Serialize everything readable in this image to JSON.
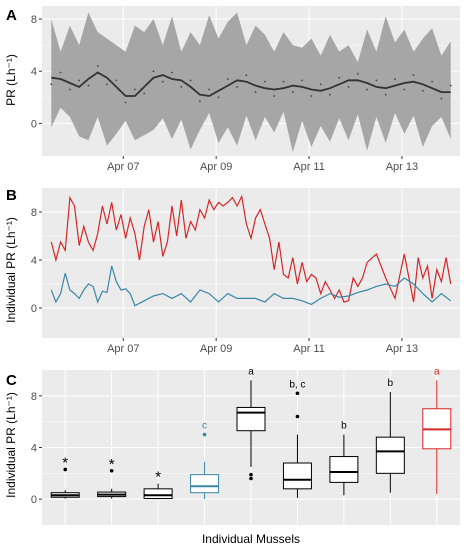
{
  "panels": [
    {
      "letter": "A",
      "ylabel": "PR (Lh⁻¹)"
    },
    {
      "letter": "B",
      "ylabel": "Individual PR (Lh⁻¹)"
    },
    {
      "letter": "C",
      "ylabel": "Individual PR (Lh⁻¹)",
      "xlabel": "Individual Mussels"
    }
  ],
  "colors": {
    "panel_bg": "#ebebeb",
    "grid": "#ffffff",
    "ribbon": "#a6a6a6",
    "mean_line": "#333333",
    "red_series": "#d62728",
    "blue_series": "#3a87a8",
    "box_black": "#000000"
  },
  "chart_data": [
    {
      "panel": "A",
      "type": "area",
      "x_tick_labels": [
        "Apr 07",
        "Apr 09",
        "Apr 11",
        "Apr 13"
      ],
      "x_ticks": [
        1.75,
        3.75,
        5.75,
        7.75
      ],
      "xlim": [
        0,
        9
      ],
      "ylim": [
        -2.5,
        9
      ],
      "y_ticks": [
        0,
        4,
        8
      ],
      "grid": true,
      "x": [
        0.2,
        0.4,
        0.6,
        0.8,
        1.0,
        1.2,
        1.4,
        1.6,
        1.8,
        2.0,
        2.2,
        2.4,
        2.6,
        2.8,
        3.0,
        3.2,
        3.4,
        3.6,
        3.8,
        4.0,
        4.2,
        4.4,
        4.6,
        4.8,
        5.0,
        5.2,
        5.4,
        5.6,
        5.8,
        6.0,
        6.2,
        6.4,
        6.6,
        6.8,
        7.0,
        7.2,
        7.4,
        7.6,
        7.8,
        8.0,
        8.2,
        8.4,
        8.6,
        8.8
      ],
      "upper": [
        8,
        5.5,
        7.5,
        6,
        8.5,
        7,
        6.5,
        6,
        5.5,
        7.5,
        7,
        8,
        6,
        8.2,
        5.5,
        7,
        6,
        8.3,
        6.5,
        7.8,
        8.5,
        6,
        7.5,
        6.8,
        5.5,
        7,
        6,
        5.8,
        6.5,
        5.2,
        6.8,
        5.5,
        6,
        4.7,
        7.2,
        5.5,
        8.2,
        6.2,
        7.2,
        5.5,
        6.5,
        7.3,
        5.2,
        6.3
      ],
      "lower": [
        -0.3,
        1.2,
        0.5,
        -1,
        -1.3,
        0.5,
        -1.7,
        -0.8,
        0.2,
        -1.3,
        -0.9,
        -0.5,
        0.4,
        -1.2,
        0.3,
        -2,
        -0.5,
        0.8,
        -1.5,
        -0.3,
        -1.7,
        0.6,
        -1.3,
        0.5,
        -0.7,
        0.9,
        -2.2,
        0.2,
        -1.8,
        -0.2,
        -1.4,
        0.4,
        -1.3,
        0.7,
        -2.1,
        0.5,
        -1.5,
        0.8,
        -0.8,
        0.6,
        -1.8,
        -0.2,
        0.5,
        -1.2
      ],
      "mean": [
        3.5,
        3.4,
        3.1,
        2.8,
        3.4,
        3.9,
        3.5,
        2.8,
        2.1,
        2.1,
        2.8,
        3.5,
        3.7,
        3.4,
        3.3,
        2.8,
        2.2,
        2.1,
        2.5,
        2.9,
        3.3,
        3.2,
        2.9,
        2.7,
        2.6,
        2.7,
        2.9,
        2.8,
        2.6,
        2.5,
        2.7,
        3.0,
        3.3,
        3.3,
        3.1,
        2.8,
        2.7,
        2.9,
        3.1,
        3.2,
        3.0,
        2.7,
        2.4,
        2.4
      ]
    },
    {
      "panel": "B",
      "type": "line",
      "x_tick_labels": [
        "Apr 07",
        "Apr 09",
        "Apr 11",
        "Apr 13"
      ],
      "x_ticks": [
        1.75,
        3.75,
        5.75,
        7.75
      ],
      "xlim": [
        0,
        9
      ],
      "ylim": [
        -2.5,
        10
      ],
      "y_ticks": [
        0,
        4,
        8
      ],
      "grid": true,
      "series": [
        {
          "color_key": "red_series",
          "x": [
            0.2,
            0.3,
            0.4,
            0.5,
            0.6,
            0.7,
            0.8,
            0.9,
            1.0,
            1.1,
            1.2,
            1.3,
            1.4,
            1.5,
            1.6,
            1.7,
            1.8,
            1.9,
            2.0,
            2.1,
            2.2,
            2.3,
            2.4,
            2.5,
            2.6,
            2.7,
            2.8,
            2.9,
            3.0,
            3.1,
            3.2,
            3.3,
            3.4,
            3.5,
            3.6,
            3.7,
            3.8,
            3.9,
            4.0,
            4.1,
            4.2,
            4.3,
            4.4,
            4.5,
            4.6,
            4.7,
            4.8,
            4.9,
            5.0,
            5.1,
            5.2,
            5.3,
            5.4,
            5.5,
            5.6,
            5.7,
            5.8,
            5.9,
            6.0,
            6.1,
            6.2,
            6.3,
            6.4,
            6.5,
            6.6,
            6.7,
            6.8,
            6.9,
            7.0,
            7.2,
            7.4,
            7.6,
            7.8,
            8.0,
            8.1,
            8.2,
            8.3,
            8.4,
            8.5,
            8.6,
            8.7,
            8.8
          ],
          "y": [
            5.5,
            4,
            5.5,
            4.8,
            9.2,
            8.5,
            5.2,
            6.8,
            5.5,
            4.8,
            6.2,
            8.5,
            7,
            8.8,
            6.5,
            7.8,
            5.8,
            7.5,
            6.2,
            4,
            6.8,
            8.2,
            5.5,
            7.2,
            4.3,
            5.5,
            8.5,
            6,
            9,
            5.8,
            7.2,
            6.5,
            8.2,
            7.5,
            9,
            8.2,
            8.8,
            8.5,
            8.8,
            9.2,
            8.5,
            9.3,
            7,
            5.8,
            7.5,
            8.2,
            7,
            5.8,
            3.2,
            5.5,
            2.8,
            2.5,
            4.2,
            2,
            3.8,
            2.2,
            2.8,
            2.5,
            1.2,
            2.2,
            1.5,
            0.8,
            1.5,
            0.5,
            0.6,
            2.5,
            1.8,
            2.5,
            3.8,
            4.5,
            2.5,
            0.8,
            4.5,
            0.5,
            4.2,
            2.5,
            3.5,
            0.8,
            3.2,
            2.2,
            4.2,
            2
          ]
        },
        {
          "color_key": "blue_series",
          "x": [
            0.2,
            0.3,
            0.4,
            0.5,
            0.6,
            0.7,
            0.8,
            0.9,
            1.0,
            1.1,
            1.2,
            1.3,
            1.4,
            1.5,
            1.6,
            1.7,
            1.8,
            1.9,
            2.0,
            2.2,
            2.4,
            2.6,
            2.8,
            3.0,
            3.2,
            3.4,
            3.6,
            3.8,
            4.0,
            4.2,
            4.4,
            4.6,
            4.8,
            5.0,
            5.2,
            5.4,
            5.6,
            5.8,
            6.0,
            6.2,
            6.4,
            6.6,
            6.8,
            7.0,
            7.2,
            7.4,
            7.6,
            7.8,
            8.0,
            8.2,
            8.4,
            8.6,
            8.8
          ],
          "y": [
            1.5,
            0.5,
            1.2,
            2.9,
            1.5,
            1.2,
            0.8,
            1.5,
            2,
            1.8,
            0.5,
            1.4,
            1.3,
            3.5,
            2.2,
            1.5,
            1.6,
            1.2,
            0.2,
            0.6,
            1,
            1.2,
            0.8,
            1.2,
            0.5,
            1.5,
            1.2,
            0.5,
            1.2,
            0.8,
            0.8,
            0.8,
            0.5,
            1.2,
            0.8,
            0.8,
            0.6,
            0.3,
            0.8,
            1.2,
            0.9,
            1,
            1.3,
            1.5,
            1.8,
            2,
            1.8,
            2.5,
            2,
            1.2,
            0.5,
            1.2,
            0.6
          ]
        }
      ]
    },
    {
      "panel": "C",
      "type": "box",
      "ylim": [
        -2,
        10
      ],
      "y_ticks": [
        0,
        4,
        8
      ],
      "grid": true,
      "boxes": [
        {
          "min": 0.05,
          "q1": 0.15,
          "median": 0.3,
          "q3": 0.5,
          "max": 0.7,
          "outliers": [
            2.3
          ],
          "label": "*",
          "color_key": "box_black"
        },
        {
          "min": 0.05,
          "q1": 0.2,
          "median": 0.35,
          "q3": 0.55,
          "max": 0.8,
          "outliers": [
            2.2
          ],
          "label": "*",
          "color_key": "box_black"
        },
        {
          "min": 0,
          "q1": 0.05,
          "median": 0.3,
          "q3": 0.8,
          "max": 1.2,
          "outliers": [],
          "label": "*",
          "color_key": "box_black"
        },
        {
          "min": 0,
          "q1": 0.5,
          "median": 1.0,
          "q3": 1.9,
          "max": 2.9,
          "outliers": [
            5
          ],
          "label": "c",
          "color_key": "blue_series"
        },
        {
          "min": 2.5,
          "q1": 5.3,
          "median": 6.7,
          "q3": 7.1,
          "max": 9.2,
          "outliers": [
            1.9,
            1.6
          ],
          "label": "a",
          "color_key": "box_black"
        },
        {
          "min": 0.1,
          "q1": 0.8,
          "median": 1.5,
          "q3": 2.8,
          "max": 5.0,
          "outliers": [
            6.4,
            8.2
          ],
          "label": "b, c",
          "color_key": "box_black"
        },
        {
          "min": 0.3,
          "q1": 1.3,
          "median": 2.1,
          "q3": 3.3,
          "max": 5.0,
          "outliers": [],
          "label": "b",
          "color_key": "box_black"
        },
        {
          "min": 0.5,
          "q1": 2.0,
          "median": 3.7,
          "q3": 4.8,
          "max": 8.3,
          "outliers": [],
          "label": "b",
          "color_key": "box_black"
        },
        {
          "min": 0.4,
          "q1": 3.9,
          "median": 5.4,
          "q3": 7.0,
          "max": 9.2,
          "outliers": [],
          "label": "a",
          "color_key": "red_series"
        }
      ]
    }
  ]
}
